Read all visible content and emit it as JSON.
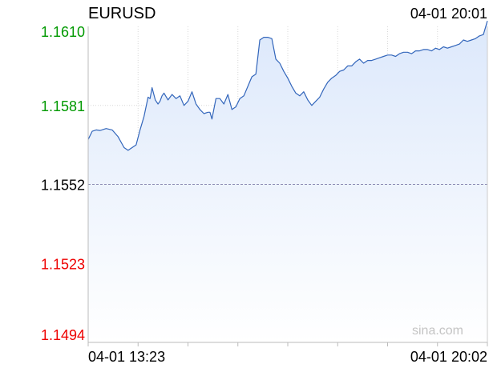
{
  "chart_data": {
    "type": "area",
    "title": "EURUSD",
    "timestamp": "04-01 20:01",
    "watermark": "sina.com",
    "x_start_label": "04-01 13:23",
    "x_end_label": "04-01 20:02",
    "y_ticks": [
      {
        "label": "1.1610",
        "value": 1.161,
        "color": "#009900"
      },
      {
        "label": "1.1581",
        "value": 1.1581,
        "color": "#009900"
      },
      {
        "label": "1.1552",
        "value": 1.1552,
        "color": "#000000"
      },
      {
        "label": "1.1523",
        "value": 1.1523,
        "color": "#ee0000"
      },
      {
        "label": "1.1494",
        "value": 1.1494,
        "color": "#ee0000"
      }
    ],
    "ylim": [
      1.1494,
      1.161
    ],
    "reference_value": 1.1552,
    "grid": true,
    "line_color": "#3366bb",
    "fill_color": "#dce8fb",
    "series": [
      {
        "x": [
          0,
          0.01,
          0.02,
          0.03,
          0.045,
          0.06,
          0.075,
          0.09,
          0.1,
          0.11,
          0.12,
          0.13,
          0.14,
          0.15,
          0.155,
          0.16,
          0.168,
          0.175,
          0.18,
          0.185,
          0.19,
          0.2,
          0.21,
          0.22,
          0.23,
          0.24,
          0.25,
          0.26,
          0.27,
          0.28,
          0.29,
          0.3,
          0.305,
          0.31,
          0.32,
          0.33,
          0.34,
          0.35,
          0.36,
          0.37,
          0.38,
          0.39,
          0.4,
          0.41,
          0.42,
          0.43,
          0.44,
          0.45,
          0.46,
          0.47,
          0.48,
          0.49,
          0.5,
          0.51,
          0.52,
          0.53,
          0.54,
          0.55,
          0.56,
          0.57,
          0.58,
          0.59,
          0.6,
          0.61,
          0.62,
          0.63,
          0.64,
          0.65,
          0.66,
          0.67,
          0.68,
          0.69,
          0.7,
          0.71,
          0.72,
          0.73,
          0.74,
          0.75,
          0.76,
          0.77,
          0.78,
          0.79,
          0.8,
          0.81,
          0.82,
          0.83,
          0.84,
          0.85,
          0.86,
          0.87,
          0.88,
          0.89,
          0.9,
          0.91,
          0.92,
          0.93,
          0.94,
          0.95,
          0.96,
          0.97,
          0.98,
          0.99,
          1.0
        ],
        "y": [
          1.15685,
          1.15715,
          1.1572,
          1.15718,
          1.15725,
          1.1572,
          1.15695,
          1.15655,
          1.15645,
          1.15655,
          1.15665,
          1.1572,
          1.1577,
          1.1584,
          1.15835,
          1.15875,
          1.1583,
          1.15815,
          1.15825,
          1.15845,
          1.15855,
          1.1583,
          1.1585,
          1.15835,
          1.15845,
          1.1581,
          1.15825,
          1.1586,
          1.15815,
          1.15795,
          1.1578,
          1.15785,
          1.15785,
          1.1576,
          1.15835,
          1.15835,
          1.15815,
          1.1585,
          1.15795,
          1.15805,
          1.15835,
          1.15845,
          1.1588,
          1.15915,
          1.15925,
          1.1605,
          1.1606,
          1.1606,
          1.16055,
          1.1598,
          1.15965,
          1.15935,
          1.1591,
          1.1588,
          1.15855,
          1.15845,
          1.1586,
          1.1583,
          1.1581,
          1.15825,
          1.1584,
          1.1587,
          1.15895,
          1.1591,
          1.1592,
          1.15935,
          1.1594,
          1.15955,
          1.15955,
          1.1597,
          1.1598,
          1.15965,
          1.15975,
          1.15975,
          1.1598,
          1.15985,
          1.1599,
          1.15995,
          1.15995,
          1.1599,
          1.16,
          1.16005,
          1.16005,
          1.16,
          1.1601,
          1.1601,
          1.16015,
          1.16015,
          1.1601,
          1.1602,
          1.16015,
          1.16025,
          1.1602,
          1.16025,
          1.1603,
          1.16035,
          1.1605,
          1.16045,
          1.1605,
          1.16055,
          1.16065,
          1.1607,
          1.1612
        ]
      }
    ]
  }
}
